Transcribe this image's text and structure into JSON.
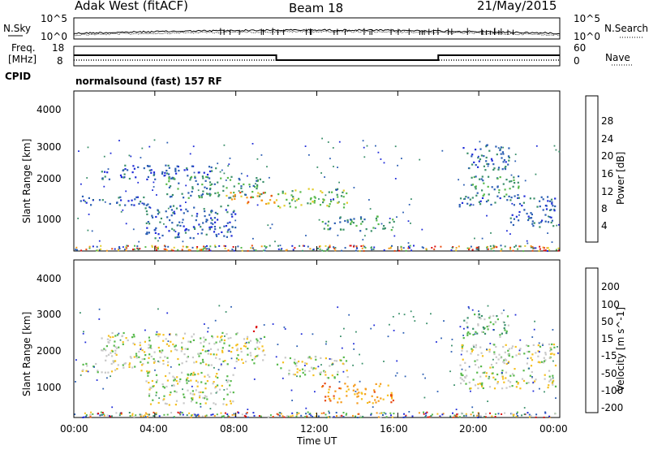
{
  "header": {
    "title_left": "Adak West (fitACF)",
    "title_center": "Beam 18",
    "title_right": "21/May/2015"
  },
  "noise_panel": {
    "left_label": "N.Sky",
    "right_label": "N.Search",
    "left_ticks": [
      "10^5",
      "10^0"
    ],
    "right_ticks": [
      "10^5",
      "10^0"
    ]
  },
  "freq_panel": {
    "left_label_1": "Freq.",
    "left_label_2": "[MHz]",
    "right_label": "Nave",
    "left_ticks": [
      "18",
      "8"
    ],
    "right_ticks": [
      "60",
      "0"
    ],
    "frequency_steps": [
      {
        "start_h": 0,
        "end_h": 10,
        "freq_mhz": 13.5
      },
      {
        "start_h": 10,
        "end_h": 18,
        "freq_mhz": 10.5
      },
      {
        "start_h": 18,
        "end_h": 24,
        "freq_mhz": 13.5
      }
    ]
  },
  "cpid_panel": {
    "label": "CPID",
    "program": "normalsound (fast) 157 RF"
  },
  "x_axis": {
    "label": "Time UT",
    "ticks": [
      "00:00",
      "04:00",
      "08:00",
      "12:00",
      "16:00",
      "20:00",
      "00:00"
    ]
  },
  "chart_data": [
    {
      "type": "heatmap",
      "ylabel": "Slant Range [km]",
      "xlabel": "",
      "x_range_hours": [
        0,
        24
      ],
      "ylim": [
        180,
        4550
      ],
      "y_ticks": [
        "1000",
        "2000",
        "3000",
        "4000"
      ],
      "colorbar": {
        "label": "Power [dB]",
        "ticks": [
          "4",
          "8",
          "12",
          "16",
          "20",
          "24",
          "28"
        ],
        "colors": [
          "#1f2bd8",
          "#2c5fb3",
          "#3a8f6a",
          "#56b94a",
          "#e2cc2a",
          "#f59a1a",
          "#e84a10",
          "#dc1010"
        ]
      },
      "patches": [
        {
          "t0": 0.3,
          "t1": 4.0,
          "r0": 1450,
          "r1": 1700,
          "level": 1
        },
        {
          "t0": 1.3,
          "t1": 7.0,
          "r0": 2150,
          "r1": 2550,
          "level": 1
        },
        {
          "t0": 4.5,
          "t1": 9.5,
          "r0": 1650,
          "r1": 2250,
          "level": 2
        },
        {
          "t0": 7.5,
          "t1": 10.0,
          "r0": 1480,
          "r1": 1800,
          "level": 5
        },
        {
          "t0": 3.5,
          "t1": 8.0,
          "r0": 550,
          "r1": 1450,
          "level": 1
        },
        {
          "t0": 10.0,
          "t1": 13.5,
          "r0": 1380,
          "r1": 1900,
          "level": 3
        },
        {
          "t0": 12.2,
          "t1": 15.8,
          "r0": 750,
          "r1": 1150,
          "level": 2
        },
        {
          "t0": 19.0,
          "t1": 23.8,
          "r0": 1400,
          "r1": 1700,
          "level": 1
        },
        {
          "t0": 19.5,
          "t1": 22.0,
          "r0": 1650,
          "r1": 2250,
          "level": 2
        },
        {
          "t0": 19.2,
          "t1": 21.5,
          "r0": 2400,
          "r1": 3100,
          "level": 1
        },
        {
          "t0": 21.5,
          "t1": 23.8,
          "r0": 850,
          "r1": 1350,
          "level": 1
        }
      ]
    },
    {
      "type": "heatmap",
      "ylabel": "Slant Range [km]",
      "xlabel": "Time UT",
      "x_range_hours": [
        0,
        24
      ],
      "ylim": [
        180,
        4550
      ],
      "y_ticks": [
        "1000",
        "2000",
        "3000",
        "4000"
      ],
      "colorbar": {
        "label": "Velocity [m s^-1]",
        "ticks": [
          "200",
          "100",
          "50",
          "15",
          "-15",
          "-50",
          "-100",
          "-200"
        ],
        "colors": [
          "#1f2bd8",
          "#2c5fb3",
          "#3a8f6a",
          "#56b94a",
          "#c8c8c8",
          "#f5c020",
          "#f59a1a",
          "#e84a10",
          "#dc1010"
        ]
      },
      "patches": [
        {
          "t0": 0.3,
          "t1": 4.0,
          "r0": 1450,
          "r1": 1700,
          "level": 4
        },
        {
          "t0": 1.3,
          "t1": 9.5,
          "r0": 1650,
          "r1": 2550,
          "level": 4
        },
        {
          "t0": 3.5,
          "t1": 8.0,
          "r0": 550,
          "r1": 1450,
          "level": 4
        },
        {
          "t0": 10.0,
          "t1": 13.5,
          "r0": 1300,
          "r1": 1900,
          "level": 4
        },
        {
          "t0": 12.2,
          "t1": 15.8,
          "r0": 600,
          "r1": 1150,
          "level": 6
        },
        {
          "t0": 8.7,
          "t1": 9.2,
          "r0": 2550,
          "r1": 2750,
          "level": 8
        },
        {
          "t0": 19.0,
          "t1": 23.8,
          "r0": 1000,
          "r1": 2250,
          "level": 4
        },
        {
          "t0": 19.2,
          "t1": 21.5,
          "r0": 2400,
          "r1": 3100,
          "level": 3
        }
      ]
    }
  ]
}
